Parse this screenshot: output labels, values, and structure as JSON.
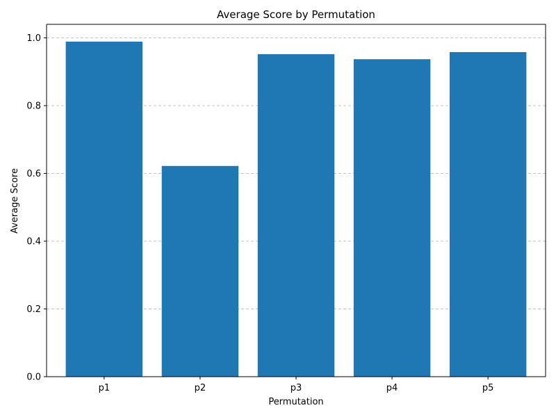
{
  "chart_data": {
    "type": "bar",
    "title": "Average Score by Permutation",
    "xlabel": "Permutation",
    "ylabel": "Average Score",
    "categories": [
      "p1",
      "p2",
      "p3",
      "p4",
      "p5"
    ],
    "values": [
      0.989,
      0.622,
      0.952,
      0.937,
      0.958
    ],
    "ylim": [
      0,
      1.04
    ],
    "yticks": [
      0.0,
      0.2,
      0.4,
      0.6,
      0.8,
      1.0
    ],
    "ytick_labels": [
      "0.0",
      "0.2",
      "0.4",
      "0.6",
      "0.8",
      "1.0"
    ],
    "grid": {
      "y": true,
      "x": false,
      "style": "dashed"
    },
    "colors": {
      "bar": "#1f77b4",
      "grid": "#b0b0b0",
      "axis": "#000000"
    }
  }
}
